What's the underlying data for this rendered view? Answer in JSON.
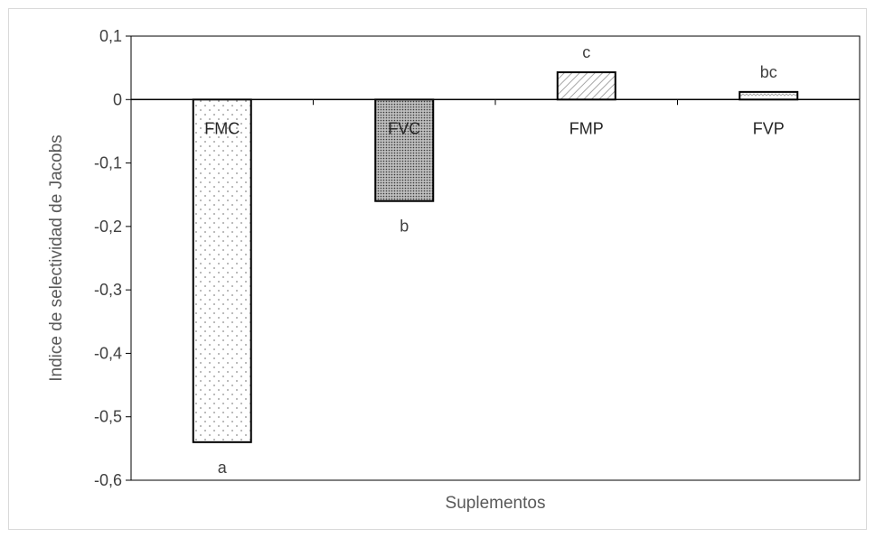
{
  "chart_data": {
    "type": "bar",
    "categories": [
      "FMC",
      "FVC",
      "FMP",
      "FVP"
    ],
    "values": [
      -0.54,
      -0.16,
      0.043,
      0.012
    ],
    "data_labels": [
      "a",
      "b",
      "c",
      "bc"
    ],
    "patterns": [
      "dots-light",
      "dots-dense",
      "hatch",
      "zigzag"
    ],
    "xlabel": "Suplementos",
    "ylabel": "Indice de selectividad de  Jacobs",
    "ylim": [
      -0.6,
      0.1
    ],
    "yticks": [
      0.1,
      0,
      -0.1,
      -0.2,
      -0.3,
      -0.4,
      -0.5,
      -0.6
    ],
    "ytick_labels": [
      "0,1",
      "0",
      "-0,1",
      "-0,2",
      "-0,3",
      "-0,4",
      "-0,5",
      "-0,6"
    ],
    "grid": false,
    "bar_stroke_color": "#000000",
    "axis_color": "#000000"
  }
}
